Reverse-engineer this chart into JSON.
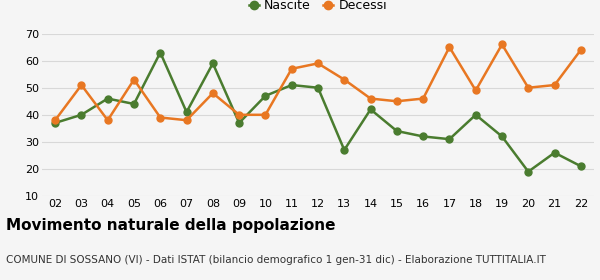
{
  "years": [
    "02",
    "03",
    "04",
    "05",
    "06",
    "07",
    "08",
    "09",
    "10",
    "11",
    "12",
    "13",
    "14",
    "15",
    "16",
    "17",
    "18",
    "19",
    "20",
    "21",
    "22"
  ],
  "nascite": [
    37,
    40,
    46,
    44,
    63,
    41,
    59,
    37,
    47,
    51,
    50,
    27,
    42,
    34,
    32,
    31,
    40,
    32,
    19,
    26,
    21
  ],
  "decessi": [
    38,
    51,
    38,
    53,
    39,
    38,
    48,
    40,
    40,
    57,
    59,
    53,
    46,
    45,
    46,
    65,
    49,
    66,
    50,
    51,
    64
  ],
  "nascite_color": "#4a7c2f",
  "decessi_color": "#e87722",
  "background_color": "#f5f5f5",
  "grid_color": "#d8d8d8",
  "ylim": [
    10,
    70
  ],
  "yticks": [
    10,
    20,
    30,
    40,
    50,
    60,
    70
  ],
  "legend_nascite": "Nascite",
  "legend_decessi": "Decessi",
  "title": "Movimento naturale della popolazione",
  "subtitle": "COMUNE DI SOSSANO (VI) - Dati ISTAT (bilancio demografico 1 gen-31 dic) - Elaborazione TUTTITALIA.IT",
  "title_fontsize": 11,
  "subtitle_fontsize": 7.5,
  "tick_fontsize": 8,
  "marker_size": 5,
  "linewidth": 1.8
}
